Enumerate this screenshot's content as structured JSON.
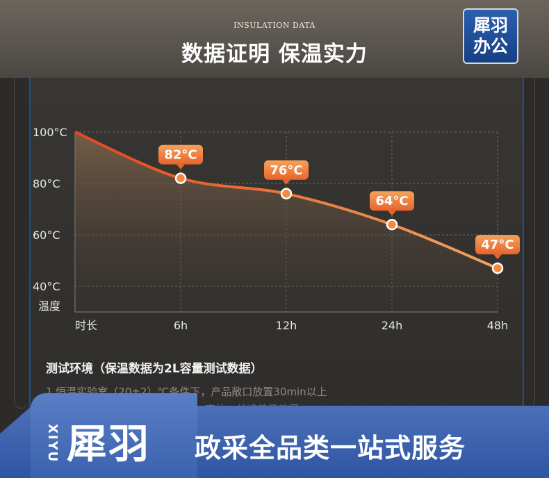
{
  "header": {
    "subtitle": "INSULATION DATA",
    "title": "数据证明 保温实力",
    "logo_line1": "犀羽",
    "logo_line2": "办公"
  },
  "chart_data": {
    "type": "area",
    "title": "",
    "x": [
      "时长",
      "6h",
      "12h",
      "24h",
      "48h"
    ],
    "y": [
      100,
      82,
      76,
      64,
      47
    ],
    "xlabel": "时长",
    "ylabel": "温度",
    "y_ticks": [
      "100°C",
      "80°C",
      "60°C",
      "40°C"
    ],
    "ylim": [
      30,
      100
    ],
    "grid": true,
    "data_labels": [
      "",
      "82°C",
      "76°C",
      "64°C",
      "47°C"
    ],
    "line_color": "#e8502a",
    "marker_color": "#f28a40"
  },
  "notes": {
    "title": "测试环境（保温数据为2L容量测试数据）",
    "line1": "1.恒温实验室（20±2）℃条件下，产品敞口放置30min以上",
    "line2": "…室外，并将盖子盖紧"
  },
  "footer": {
    "vertical": "XIYU",
    "brand": "犀羽",
    "slogan": "政采全品类一站式服务",
    "bg_color": "#2f56a3"
  }
}
